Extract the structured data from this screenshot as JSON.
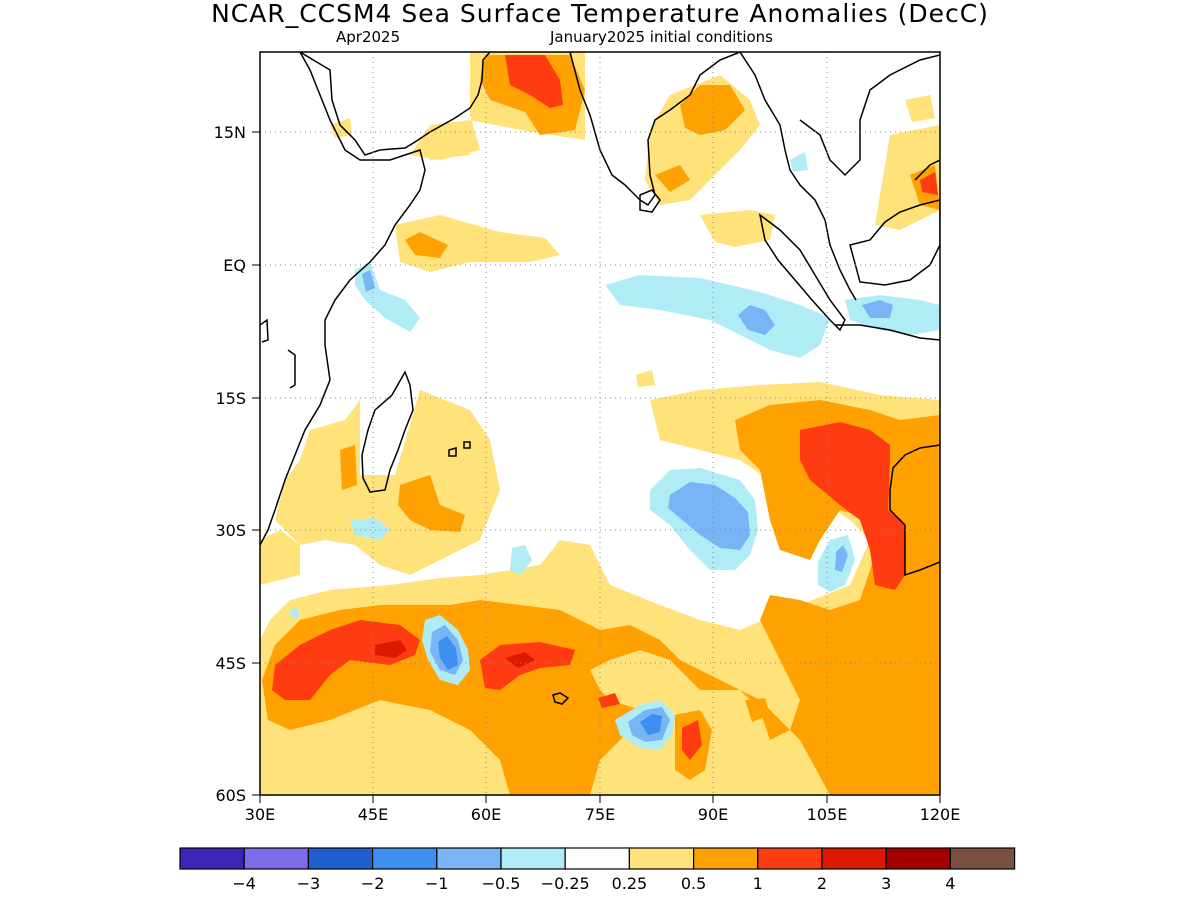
{
  "title": "NCAR_CCSM4 Sea Surface Temperature Anomalies (DecC)",
  "subtitle_left": "Apr2025",
  "subtitle_right": "January2025 initial conditions",
  "lat_labels": [
    "15N",
    "EQ",
    "15S",
    "30S",
    "45S",
    "60S"
  ],
  "lon_labels": [
    "30E",
    "45E",
    "60E",
    "75E",
    "90E",
    "105E",
    "120E"
  ],
  "colorbar": {
    "colors": [
      "#3b25b8",
      "#7c6cea",
      "#1e5fd0",
      "#3d8ff0",
      "#78b4f6",
      "#b0ecf6",
      "#ffffff",
      "#ffe27a",
      "#ffa100",
      "#ff3b12",
      "#dd1a00",
      "#a40000",
      "#7a5040"
    ],
    "labels": [
      "−4",
      "−3",
      "−2",
      "−1",
      "−0.5",
      "−0.25",
      "0.25",
      "0.5",
      "1",
      "2",
      "3",
      "4"
    ]
  },
  "map_data": {
    "region": "Indian Ocean",
    "lon_range": [
      30,
      120
    ],
    "lat_range": [
      -60,
      24
    ],
    "variable": "Sea Surface Temperature Anomalies",
    "units": "DecC"
  }
}
